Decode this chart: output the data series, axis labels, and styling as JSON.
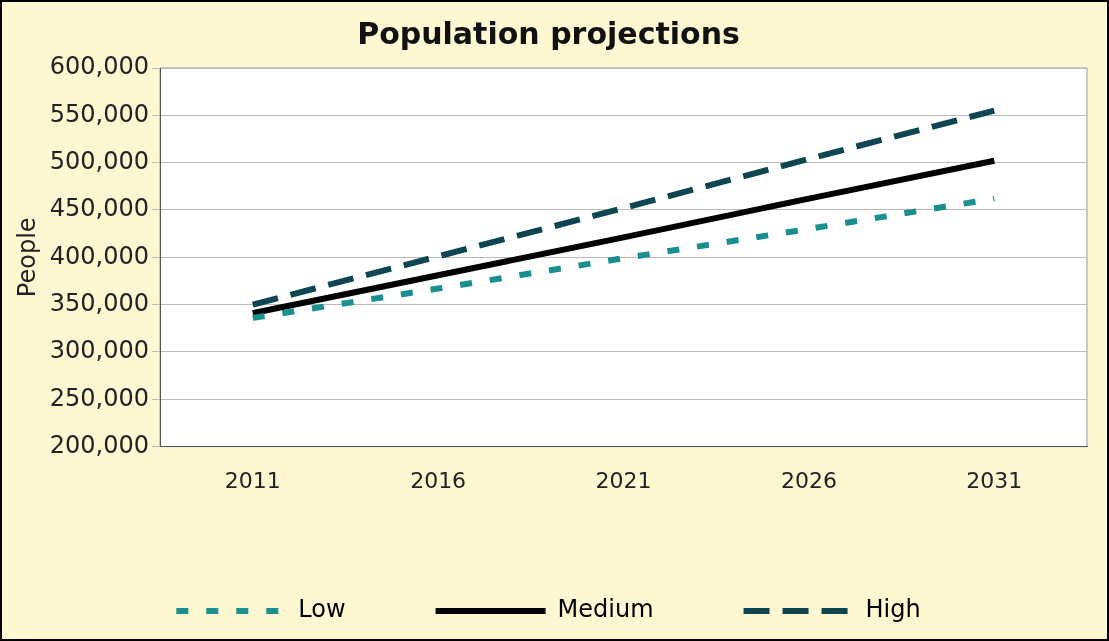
{
  "chart_data": {
    "type": "line",
    "title": "Population projections",
    "ylabel": "People",
    "categories": [
      "2011",
      "2016",
      "2021",
      "2026",
      "2031"
    ],
    "series": [
      {
        "name": "Low",
        "color": "#1a8f8f",
        "line_style": "dotted",
        "values": [
          336000,
          367000,
          399000,
          430000,
          462000
        ]
      },
      {
        "name": "Medium",
        "color": "#000000",
        "line_style": "solid",
        "values": [
          341000,
          381000,
          421000,
          462000,
          502000
        ]
      },
      {
        "name": "High",
        "color": "#0d4650",
        "line_style": "dashed",
        "values": [
          350000,
          401000,
          452000,
          504000,
          555000
        ]
      }
    ],
    "ylim": [
      200000,
      600000
    ],
    "yticks": [
      {
        "value": 200000,
        "label": "200,000"
      },
      {
        "value": 250000,
        "label": "250,000"
      },
      {
        "value": 300000,
        "label": "300,000"
      },
      {
        "value": 350000,
        "label": "350,000"
      },
      {
        "value": 400000,
        "label": "400,000"
      },
      {
        "value": 450000,
        "label": "450,000"
      },
      {
        "value": 500000,
        "label": "500,000"
      },
      {
        "value": 550000,
        "label": "550,000"
      },
      {
        "value": 600000,
        "label": "600,000"
      }
    ],
    "grid": "y",
    "legend": "bottom",
    "marker": "none"
  }
}
